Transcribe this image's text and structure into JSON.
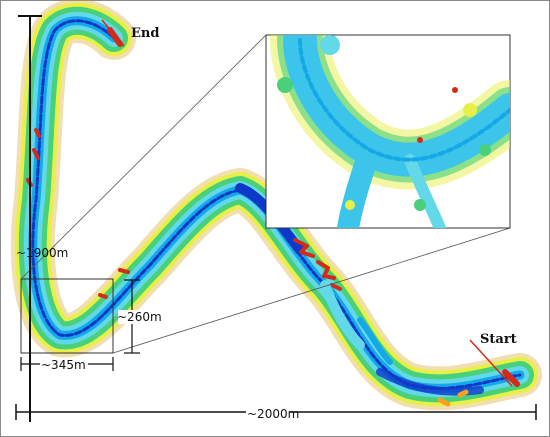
{
  "labels": {
    "end": "End",
    "start": "Start",
    "height_total": "~1900m",
    "width_total": "~2000m",
    "box_height": "~260m",
    "box_width": "~345m"
  },
  "colors": {
    "road_dark": "#1038c8",
    "road_mid": "#14a8e8",
    "road_light": "#62d8e8",
    "veg_green": "#48d07a",
    "veg_yellow": "#e8f048",
    "veg_orange": "#f8a020",
    "veg_red": "#d42a1a",
    "inset_core": "#3cc4ea"
  }
}
